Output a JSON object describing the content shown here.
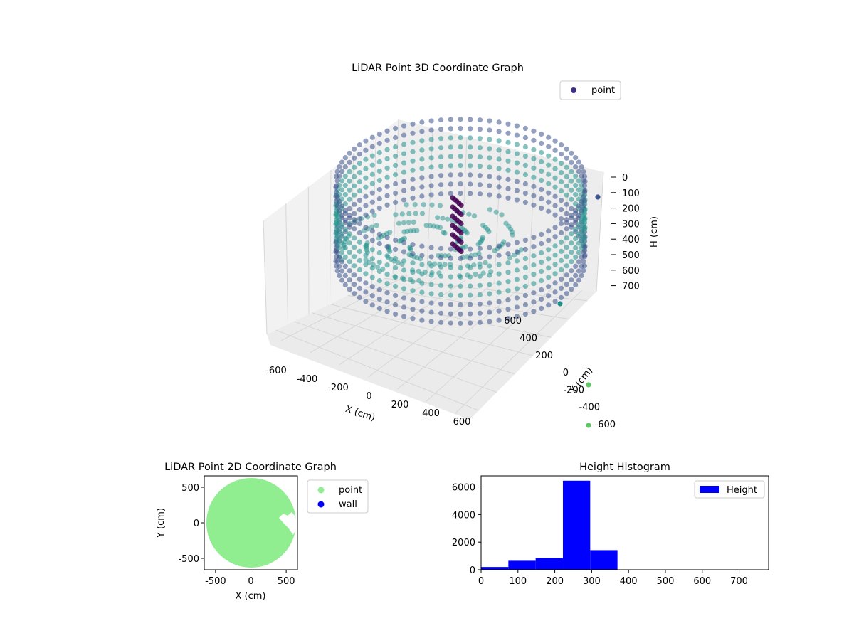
{
  "chart_data": [
    {
      "id": "lidar-3d",
      "type": "scatter",
      "title": "LiDAR Point 3D Coordinate Graph",
      "xlabel": "X (cm)",
      "ylabel": "Y (cm)",
      "zlabel": "H (cm)",
      "xlim": [
        -700,
        700
      ],
      "ylim": [
        -700,
        700
      ],
      "zlim": [
        0,
        750
      ],
      "z_inverted": true,
      "x_ticks": [
        -600,
        -400,
        -200,
        0,
        200,
        400,
        600
      ],
      "y_ticks": [
        -600,
        -400,
        -200,
        0,
        200,
        400,
        600
      ],
      "z_ticks": [
        0,
        100,
        200,
        300,
        400,
        500,
        600,
        700
      ],
      "grid": true,
      "legend": {
        "position": "top-right",
        "entries": [
          "point"
        ]
      },
      "colormap": [
        "#440154",
        "#3b528b",
        "#21918c",
        "#5ec962"
      ],
      "series": [
        {
          "name": "point",
          "description_points": "ring of wall points, radius about 650 cm, heights 80-500 cm",
          "ring_radius": 650,
          "ring_heights": [
            80,
            500
          ],
          "outliers": [
            {
              "x": 650,
              "y": 650,
              "h": 100
            },
            {
              "x": 600,
              "y": 500,
              "h": 560
            },
            {
              "x": 620,
              "y": 250,
              "h": 850
            },
            {
              "x": 640,
              "y": 200,
              "h": 960
            }
          ]
        }
      ]
    },
    {
      "id": "lidar-2d",
      "type": "scatter",
      "title": "LiDAR Point 2D Coordinate Graph",
      "xlabel": "X (cm)",
      "ylabel": "Y (cm)",
      "xlim": [
        -660,
        660
      ],
      "ylim": [
        -660,
        660
      ],
      "x_ticks": [
        -500,
        0,
        500
      ],
      "y_ticks": [
        -500,
        0,
        500
      ],
      "legend": {
        "position": "right",
        "entries": [
          {
            "label": "point",
            "color": "#90ee90"
          },
          {
            "label": "wall",
            "color": "#0000ff"
          }
        ]
      },
      "disk_radius": 650
    },
    {
      "id": "height-hist",
      "type": "bar",
      "title": "Height Histogram",
      "xlim": [
        0,
        780
      ],
      "ylim": [
        0,
        6800
      ],
      "x_ticks": [
        0,
        100,
        200,
        300,
        400,
        500,
        600,
        700
      ],
      "y_ticks": [
        0,
        2000,
        4000,
        6000
      ],
      "bin_edges": [
        0,
        74,
        148,
        222,
        296,
        370,
        444,
        518,
        592,
        666,
        740
      ],
      "values": [
        200,
        650,
        850,
        6450,
        1420,
        0,
        0,
        0,
        0,
        0
      ],
      "color": "#0000ff",
      "legend": {
        "position": "top-right",
        "entries": [
          "Height"
        ]
      }
    }
  ]
}
